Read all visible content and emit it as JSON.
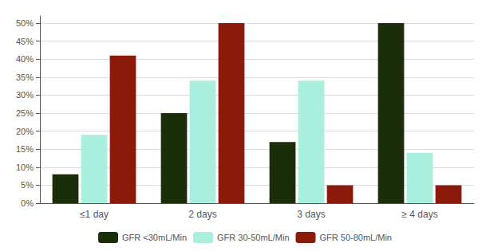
{
  "chart_data": {
    "type": "bar",
    "categories": [
      "≤1 day",
      "2 days",
      "3 days",
      "≥ 4 days"
    ],
    "series": [
      {
        "name": "GFR <30mL/Min",
        "color": "#1a2e0a",
        "values": [
          8,
          25,
          17,
          50
        ]
      },
      {
        "name": "GFR 30-50mL/Min",
        "color": "#aaeedd",
        "values": [
          19,
          34,
          34,
          14
        ]
      },
      {
        "name": "GFR 50-80mL/Min",
        "color": "#8b1a0a",
        "values": [
          41,
          50,
          5,
          5
        ]
      }
    ],
    "ylim": [
      0,
      52
    ],
    "yticks": [
      {
        "value": 0,
        "label": "0%"
      },
      {
        "value": 5,
        "label": "5%"
      },
      {
        "value": 10,
        "label": "10%"
      },
      {
        "value": 15,
        "label": "15%"
      },
      {
        "value": 20,
        "label": "20%"
      },
      {
        "value": 25,
        "label": "25%"
      },
      {
        "value": 30,
        "label": "30%"
      },
      {
        "value": 35,
        "label": "35%"
      },
      {
        "value": 40,
        "label": "40%"
      },
      {
        "value": 45,
        "label": "45%"
      },
      {
        "value": 50,
        "label": "50%"
      }
    ],
    "grid": true,
    "legend": "bottom"
  }
}
